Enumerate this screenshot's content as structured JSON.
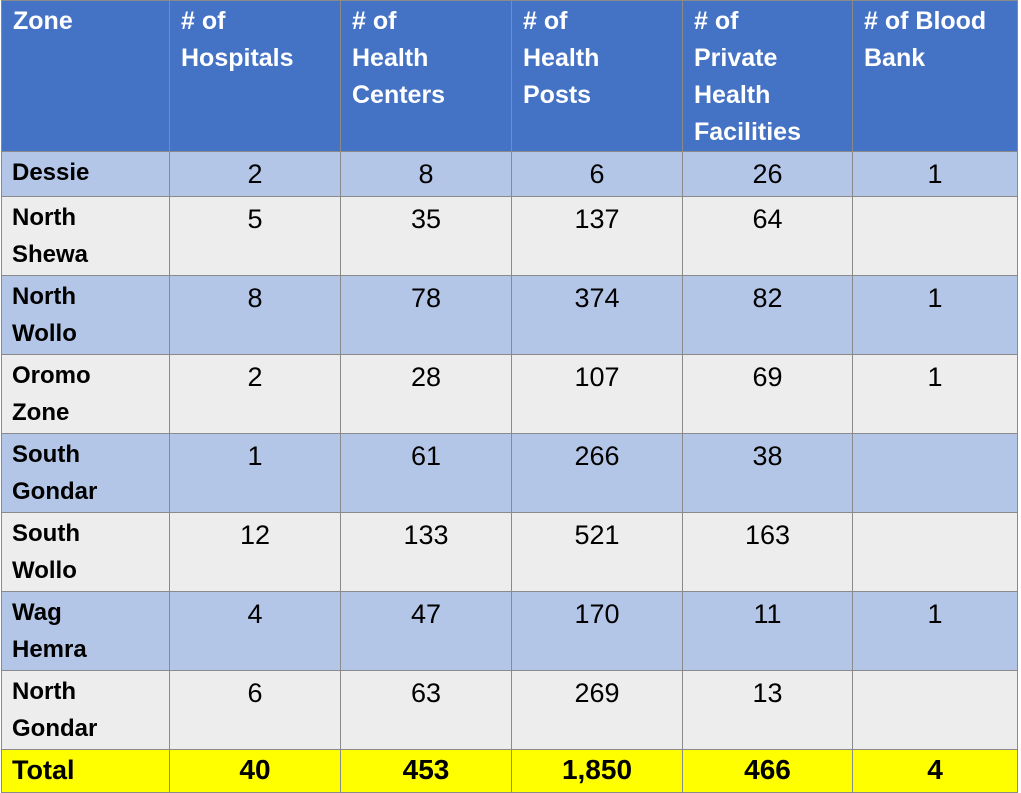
{
  "table": {
    "headers": [
      "Zone",
      "# of\nHospitals",
      "# of\nHealth\nCenters",
      "# of\nHealth\nPosts",
      "# of\nPrivate\nHealth\nFacilities",
      "# of Blood\nBank"
    ],
    "rows": [
      {
        "zone": "Dessie",
        "hospitals": "2",
        "health_centers": "8",
        "health_posts": "6",
        "private_facilities": "26",
        "blood_bank": "1"
      },
      {
        "zone": "North\nShewa",
        "hospitals": "5",
        "health_centers": "35",
        "health_posts": "137",
        "private_facilities": "64",
        "blood_bank": ""
      },
      {
        "zone": "North\nWollo",
        "hospitals": "8",
        "health_centers": "78",
        "health_posts": "374",
        "private_facilities": "82",
        "blood_bank": "1"
      },
      {
        "zone": "Oromo\nZone",
        "hospitals": "2",
        "health_centers": "28",
        "health_posts": "107",
        "private_facilities": "69",
        "blood_bank": "1"
      },
      {
        "zone": "South\nGondar",
        "hospitals": "1",
        "health_centers": "61",
        "health_posts": "266",
        "private_facilities": "38",
        "blood_bank": ""
      },
      {
        "zone": "South\nWollo",
        "hospitals": "12",
        "health_centers": "133",
        "health_posts": "521",
        "private_facilities": "163",
        "blood_bank": ""
      },
      {
        "zone": "Wag\nHemra",
        "hospitals": "4",
        "health_centers": "47",
        "health_posts": "170",
        "private_facilities": "11",
        "blood_bank": "1"
      },
      {
        "zone": "North\nGondar",
        "hospitals": "6",
        "health_centers": "63",
        "health_posts": "269",
        "private_facilities": "13",
        "blood_bank": ""
      }
    ],
    "total": {
      "zone": "Total",
      "hospitals": "40",
      "health_centers": "453",
      "health_posts": "1,850",
      "private_facilities": "466",
      "blood_bank": "4"
    }
  },
  "colors": {
    "header_bg": "#4472c4",
    "band_row_bg": "#b4c6e7",
    "plain_row_bg": "#ededed",
    "total_row_bg": "#ffff00"
  }
}
